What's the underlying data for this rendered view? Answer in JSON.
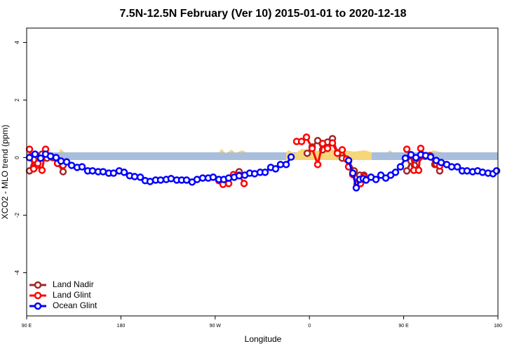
{
  "chart_data": {
    "type": "line",
    "title": "7.5N-12.5N February (Ver 10)   2015-01-01 to 2020-12-18",
    "x_label": "Longitude",
    "y_label": "XCO2 - MLO trend (ppm)",
    "xlim": [
      90,
      540
    ],
    "ylim": [
      -5.5,
      4.5
    ],
    "xticks": [
      {
        "value": 90,
        "label": "90 E"
      },
      180,
      {
        "value": 270,
        "label": "90 W"
      },
      {
        "value": 360,
        "label": "0"
      },
      {
        "value": 450,
        "label": "90 E"
      },
      {
        "value": 540,
        "label": "180"
      }
    ],
    "yticks": [
      -4,
      -2,
      0,
      2,
      4
    ],
    "legend": "bottomleft",
    "series": [
      {
        "name": "Land Nadir",
        "color": "#a0282c",
        "x": [
          92.7,
          96.7,
          100.0,
          104.7,
          109.4,
          114.8,
          119.5,
          124.8,
          null,
          278.8,
          287.5,
          292.9,
          null,
          357.9,
          362.6,
          367.9,
          372.6,
          377.3,
          382.0,
          386.7,
          391.3,
          397.4,
          402.7,
          408.1,
          412.1,
          null,
          453.0,
          457.0,
          460.3,
          464.3,
          469.0,
          475.0,
          479.7,
          484.4
        ],
        "values": [
          -0.46,
          -0.07,
          -0.27,
          0.12,
          -0.02,
          0,
          -0.2,
          -0.49,
          null,
          -0.83,
          -0.61,
          -0.49,
          null,
          0.15,
          0.37,
          0.59,
          0.27,
          0.54,
          0.66,
          0.17,
          -0.02,
          -0.12,
          -0.46,
          -0.61,
          -0.61,
          null,
          -0.46,
          -0.12,
          -0.27,
          -0.02,
          0.07,
          0.07,
          -0.24,
          -0.46
        ]
      },
      {
        "name": "Land Glint",
        "color": "#ff0000",
        "x": [
          92.7,
          96.7,
          100.7,
          104.7,
          108.1,
          112.8,
          119.5,
          124.8,
          null,
          273.5,
          277.5,
          282.9,
          287.5,
          292.9,
          297.6,
          null,
          347.8,
          352.5,
          357.2,
          362.6,
          367.9,
          372.6,
          377.3,
          382.0,
          386.7,
          391.3,
          395.4,
          397.4,
          401.4,
          405.4,
          408.8,
          412.1,
          null,
          453.0,
          457.0,
          459.7,
          464.3,
          466.3,
          470.4,
          475.7,
          481.1,
          484.4
        ],
        "values": [
          0.29,
          -0.39,
          -0.2,
          -0.44,
          0.29,
          0.05,
          -0.2,
          -0.27,
          null,
          -0.8,
          -0.93,
          -0.9,
          -0.59,
          -0.61,
          -0.9,
          null,
          0.56,
          0.56,
          0.71,
          0.32,
          -0.24,
          0.49,
          0.32,
          0.51,
          0.15,
          0.27,
          -0.05,
          -0.32,
          -0.59,
          -0.93,
          -0.9,
          -0.66,
          null,
          0.29,
          0.07,
          -0.44,
          -0.44,
          0.32,
          0.05,
          0.05,
          -0.22,
          -0.29
        ]
      },
      {
        "name": "Ocean Glint",
        "color": "#0000ff",
        "x": [
          92.7,
          98.0,
          103.4,
          108.1,
          112.8,
          118.1,
          122.8,
          128.2,
          132.9,
          138.2,
          142.9,
          148.3,
          152.9,
          158.3,
          163.0,
          168.4,
          173.0,
          178.4,
          183.1,
          188.4,
          193.1,
          198.5,
          203.2,
          207.9,
          213.2,
          217.9,
          223.3,
          227.9,
          233.3,
          238.0,
          242.7,
          248.0,
          252.7,
          258.1,
          263.4,
          268.1,
          273.5,
          278.2,
          282.9,
          288.2,
          292.9,
          298.3,
          303.0,
          307.7,
          313.0,
          317.7,
          323.1,
          327.7,
          332.4,
          337.8,
          342.5,
          null,
          397.4,
          401.4,
          404.7,
          408.1,
          411.4,
          414.1,
          418.8,
          423.5,
          428.2,
          432.9,
          437.6,
          442.2,
          446.9,
          451.6,
          457.0,
          461.7,
          466.3,
          471.0,
          475.7,
          481.1,
          485.8,
          491.1,
          495.8,
          501.2,
          505.9,
          510.5,
          515.9,
          520.6,
          525.3,
          530.6,
          535.3,
          538.7
        ],
        "values": [
          0,
          0.12,
          -0.02,
          0.12,
          0.05,
          0,
          -0.12,
          -0.15,
          -0.27,
          -0.34,
          -0.32,
          -0.46,
          -0.46,
          -0.49,
          -0.49,
          -0.54,
          -0.54,
          -0.46,
          -0.51,
          -0.63,
          -0.66,
          -0.68,
          -0.8,
          -0.83,
          -0.78,
          -0.78,
          -0.76,
          -0.73,
          -0.78,
          -0.78,
          -0.78,
          -0.85,
          -0.76,
          -0.71,
          -0.71,
          -0.68,
          -0.76,
          -0.76,
          -0.71,
          -0.68,
          -0.63,
          -0.61,
          -0.54,
          -0.56,
          -0.51,
          -0.51,
          -0.34,
          -0.39,
          -0.24,
          -0.24,
          0.02,
          null,
          -0.1,
          -0.54,
          -1.05,
          -0.76,
          -0.73,
          -0.78,
          -0.68,
          -0.76,
          -0.61,
          -0.71,
          -0.61,
          -0.51,
          -0.32,
          -0.02,
          0.1,
          0,
          0.1,
          0.07,
          0.02,
          -0.1,
          -0.17,
          -0.24,
          -0.32,
          -0.32,
          -0.46,
          -0.46,
          -0.49,
          -0.46,
          -0.51,
          -0.54,
          -0.56,
          -0.46
        ]
      }
    ]
  }
}
